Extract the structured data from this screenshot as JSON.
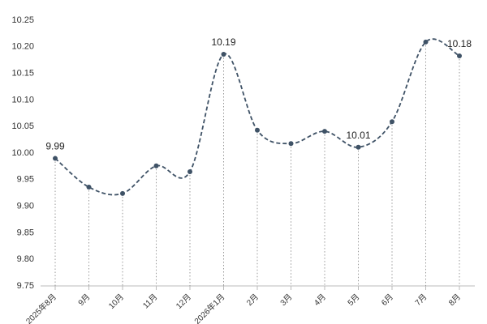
{
  "chart_data": {
    "type": "line",
    "categories": [
      "2025年8月",
      "9月",
      "10月",
      "11月",
      "12月",
      "2026年1月",
      "2月",
      "3月",
      "4月",
      "5月",
      "6月",
      "7月",
      "8月"
    ],
    "series": [
      {
        "color": "#3f5266",
        "values": [
          9.99,
          9.936,
          9.924,
          9.976,
          9.965,
          10.186,
          10.043,
          10.018,
          10.041,
          10.011,
          10.059,
          10.209,
          10.183
        ],
        "value_labels": [
          "9.99",
          null,
          null,
          null,
          null,
          "10.19",
          null,
          null,
          null,
          "10.01",
          null,
          null,
          "10.18"
        ]
      }
    ],
    "ylim": [
      9.75,
      10.25
    ],
    "yticks": [
      {
        "value": 9.75,
        "label": "9.75"
      },
      {
        "value": 9.8,
        "label": "9.80"
      },
      {
        "value": 9.85,
        "label": "9.85"
      },
      {
        "value": 9.9,
        "label": "9.90"
      },
      {
        "value": 9.95,
        "label": "9.95"
      },
      {
        "value": 10.0,
        "label": "10.00"
      },
      {
        "value": 10.05,
        "label": "10.05"
      },
      {
        "value": 10.1,
        "label": "10.10"
      },
      {
        "value": 10.15,
        "label": "10.15"
      },
      {
        "value": 10.2,
        "label": "10.20"
      },
      {
        "value": 10.25,
        "label": "10.25"
      }
    ]
  }
}
